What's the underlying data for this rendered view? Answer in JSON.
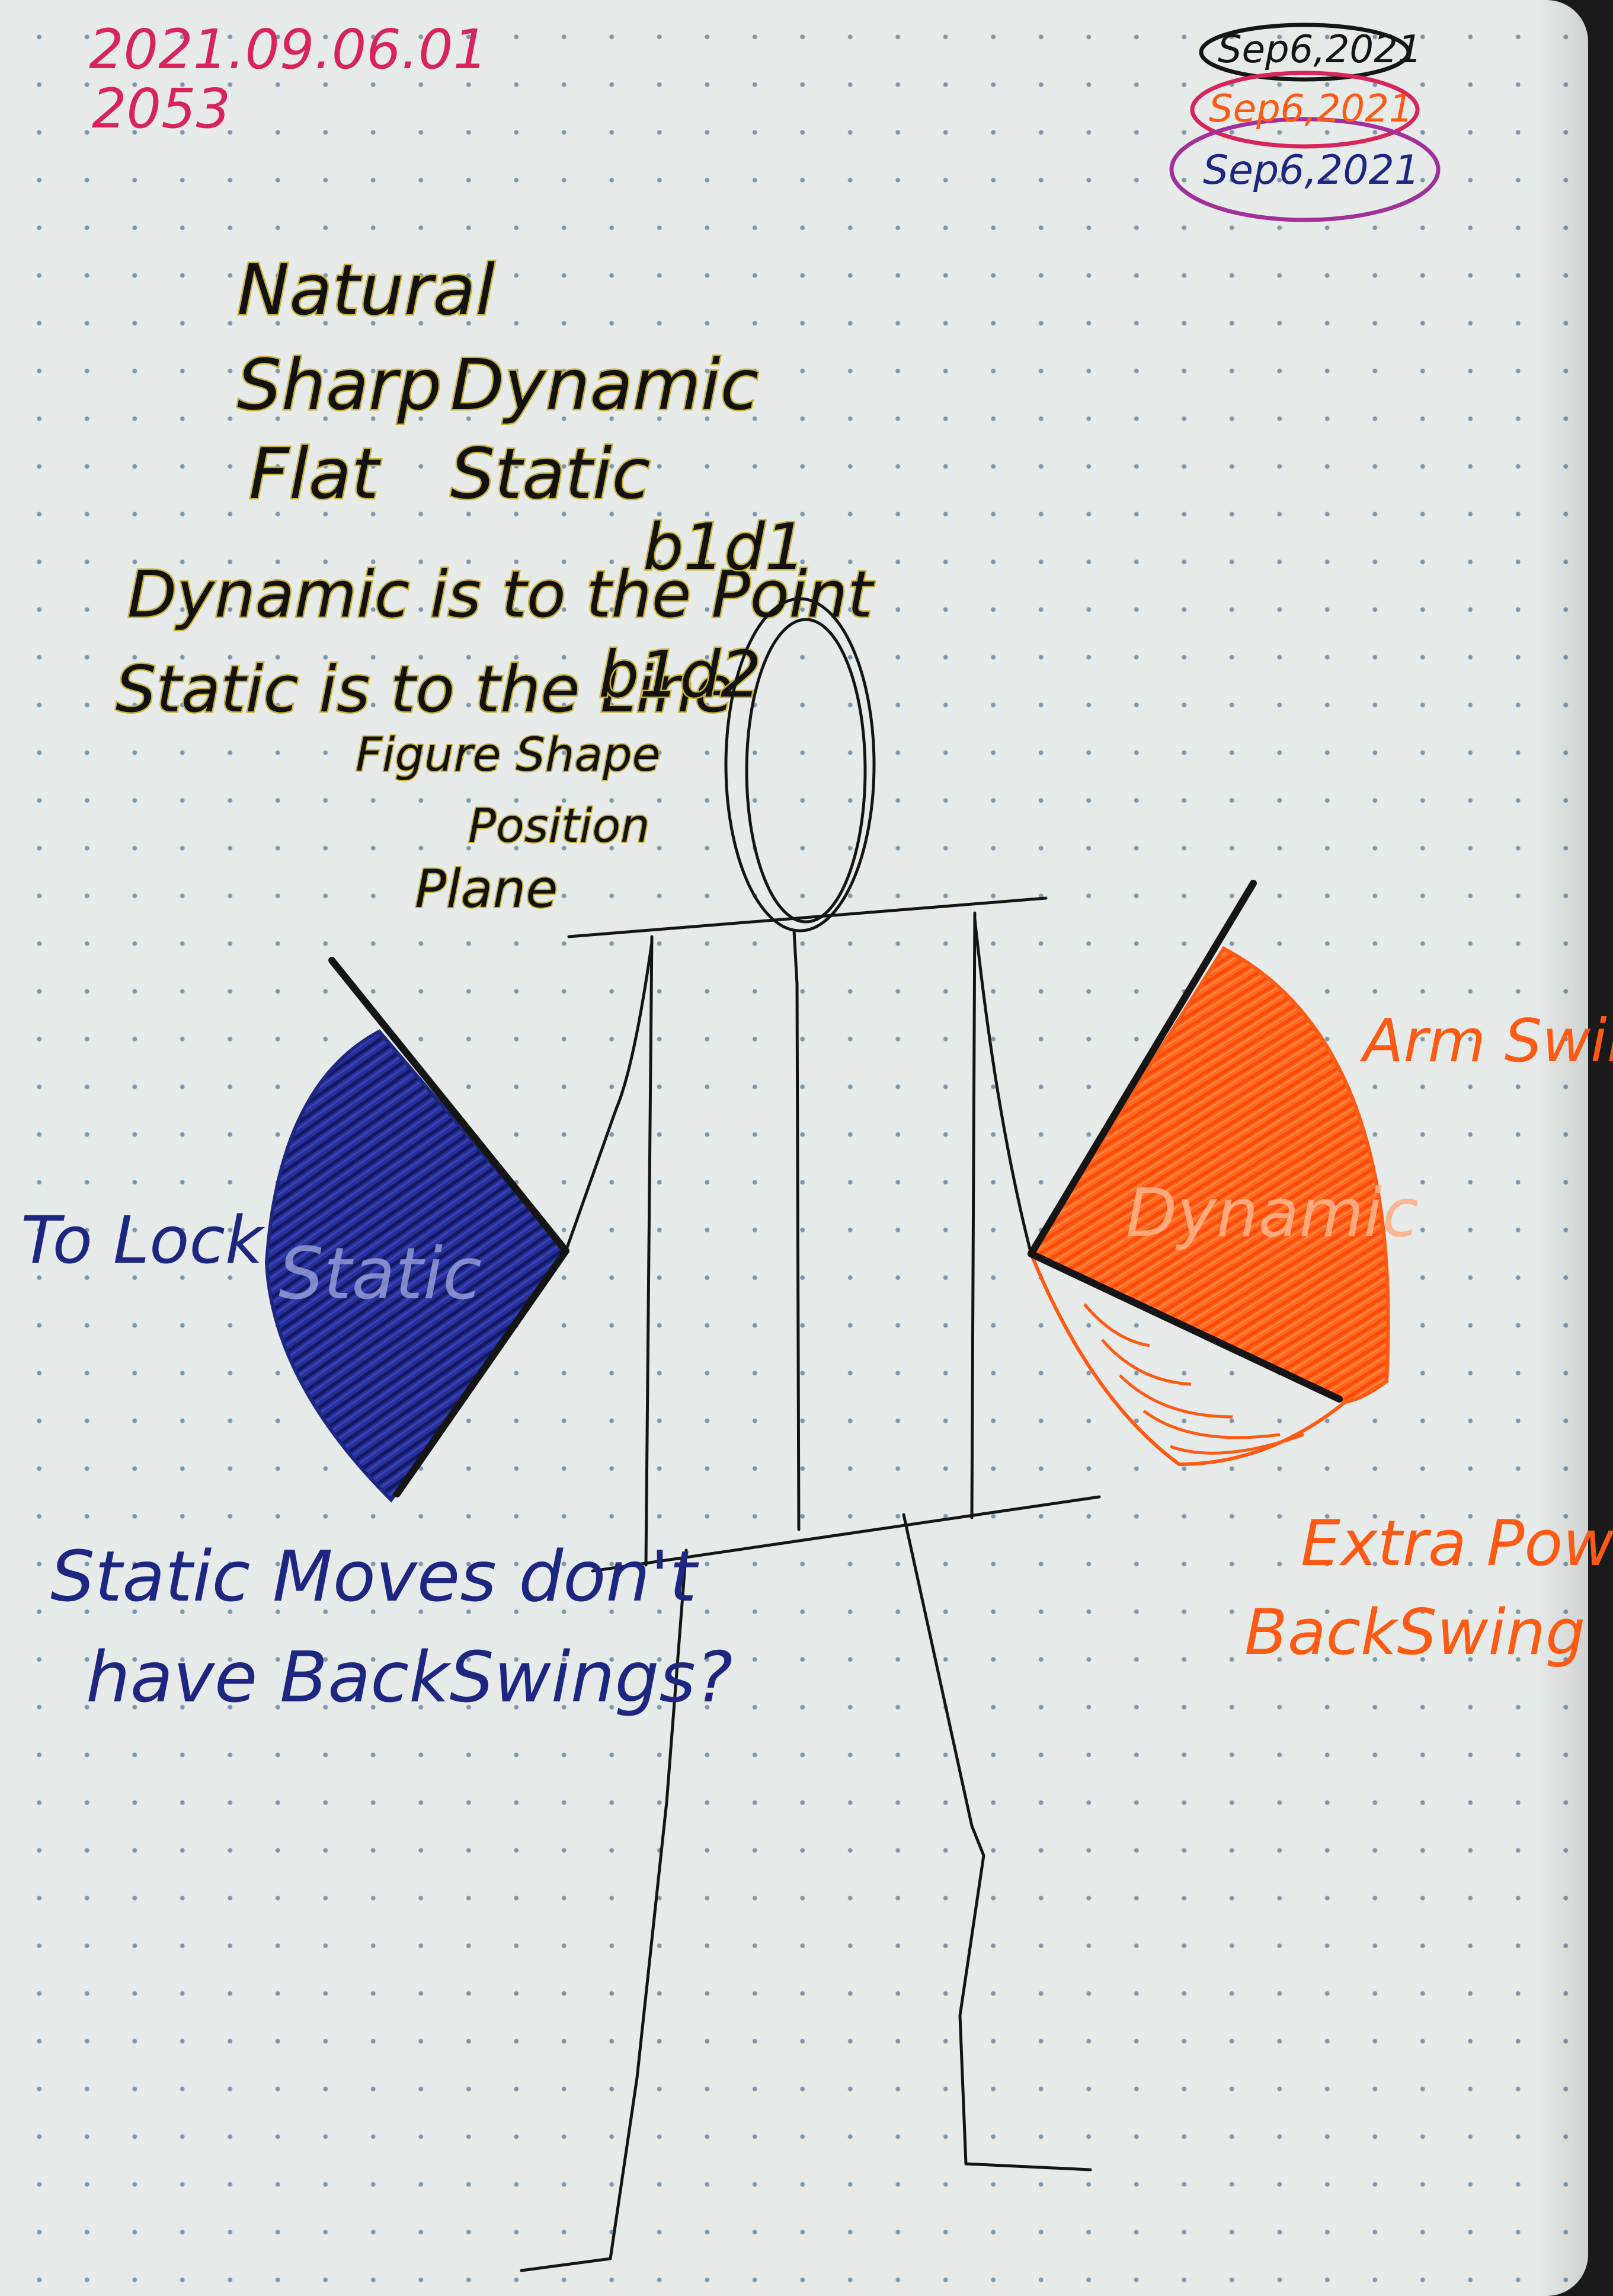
{
  "header": {
    "date_code": "2021.09.06.01",
    "time_code": "2053",
    "pen_tests": [
      "Sep6,2021",
      "Sep6,2021",
      "Sep6,2021"
    ]
  },
  "concepts": {
    "top": "Natural",
    "row1": [
      "Sharp",
      "Dynamic"
    ],
    "row2": [
      "Flat",
      "Static"
    ]
  },
  "principles": [
    {
      "text": "Dynamic is to the Point",
      "code": "b1d1"
    },
    {
      "text": "Static is to the Line",
      "code": "b1d2"
    }
  ],
  "figure_notes": [
    "Figure Shape",
    "Position",
    "Plane"
  ],
  "left_arm": {
    "fill_label": "Static",
    "side_note": "To Lock",
    "question_lines": [
      "Static Moves don't",
      "have BackSwings?"
    ]
  },
  "right_arm": {
    "fill_label": "Dynamic",
    "side_note": "Arm Swing",
    "bottom_lines": [
      "Extra Power",
      "BackSwing"
    ]
  },
  "colors": {
    "paper": "#e6ebe9",
    "dot": "#7f97ad",
    "black_ink": "#151515",
    "yellow_outline": "#bba62a",
    "blue_ink": "#1d2680",
    "orange_ink": "#ff5a14",
    "pink_ink": "#d8245a",
    "purple_ink": "#a2309a"
  }
}
